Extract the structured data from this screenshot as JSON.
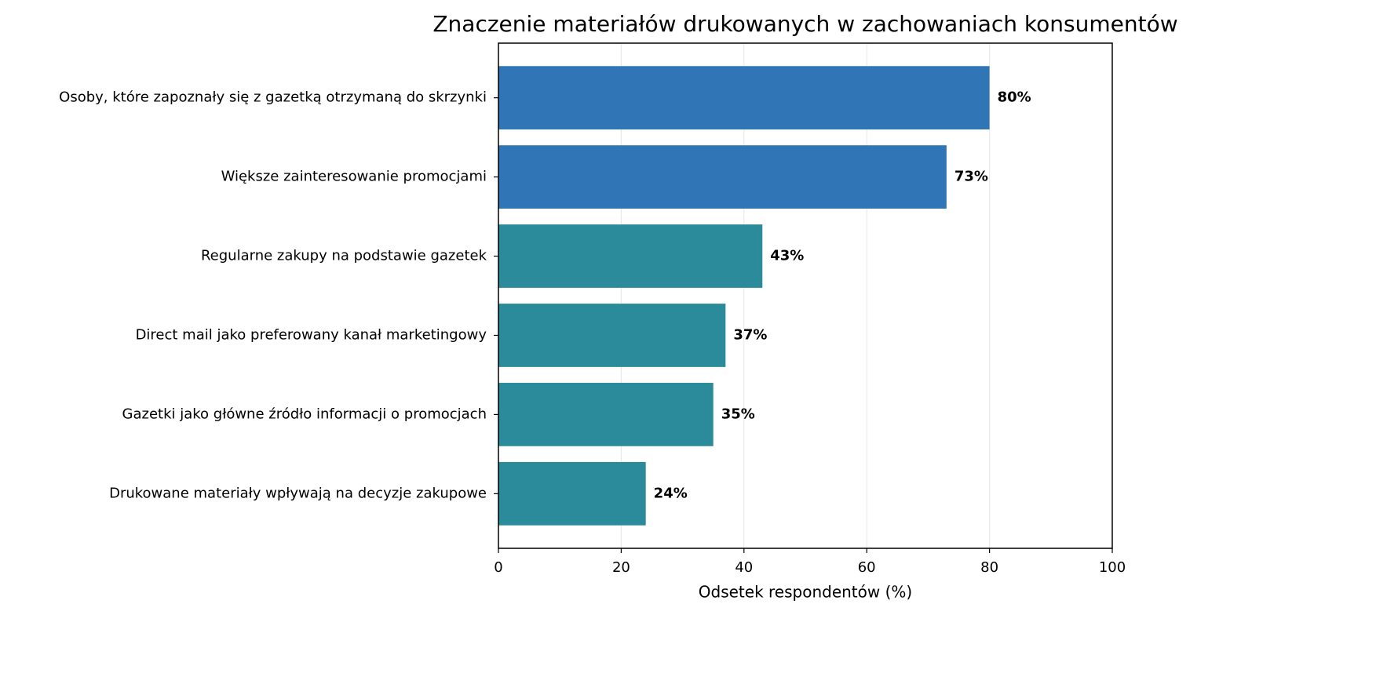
{
  "chart_data": {
    "type": "barh",
    "title": "Znaczenie materiałów drukowanych w zachowaniach konsumentów",
    "x_label": "Odsetek respondentów (%)",
    "categories": [
      "Osoby, które zapoznały się z gazetką otrzymaną do skrzynki",
      "Większe zainteresowanie promocjami",
      "Regularne zakupy na podstawie gazetek",
      "Direct mail jako preferowany kanał marketingowy",
      "Gazetki jako główne źródło informacji o promocjach",
      "Drukowane materiały wpływają na decyzje zakupowe"
    ],
    "values": [
      80,
      73,
      43,
      37,
      35,
      24
    ],
    "value_labels": [
      "80%",
      "73%",
      "43%",
      "37%",
      "35%",
      "24%"
    ],
    "colors": [
      "#3075b5",
      "#3075b5",
      "#2b8b9b",
      "#2b8b9b",
      "#2b8b9b",
      "#2b8b9b"
    ],
    "xlim": [
      0,
      100
    ],
    "xticks": [
      0,
      20,
      40,
      60,
      80,
      100
    ],
    "grid": true
  }
}
